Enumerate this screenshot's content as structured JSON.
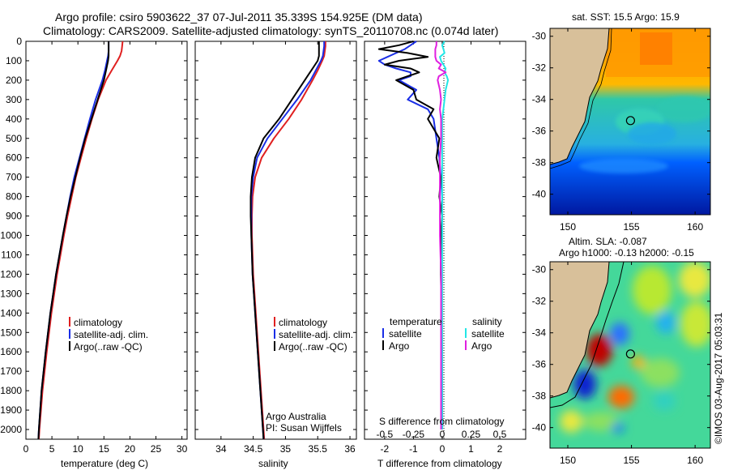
{
  "header": {
    "line1": "Argo profile: csiro 5903622_37 07-Jul-2011 35.339S 154.925E (DM data)",
    "line2": "Climatology: CARS2009. Satellite-adjusted climatology: synTS_20110708.nc (0.074d later)"
  },
  "colors": {
    "climatology": "#e02020",
    "satellite": "#1a2ee6",
    "argo": "#000000",
    "sal_satellite": "#22e6e6",
    "sal_argo": "#e020e0"
  },
  "depth_axis": {
    "ylim": [
      0,
      2050
    ],
    "ticks": [
      "0",
      "100",
      "200",
      "300",
      "400",
      "500",
      "600",
      "700",
      "800",
      "900",
      "1000",
      "1100",
      "1200",
      "1300",
      "1400",
      "1500",
      "1600",
      "1700",
      "1800",
      "1900",
      "2000"
    ]
  },
  "chart_data": [
    {
      "type": "line",
      "xlabel": "temperature (deg C)",
      "xlim": [
        0,
        31
      ],
      "xticks": [
        "0",
        "5",
        "10",
        "15",
        "20",
        "25",
        "30"
      ],
      "legend": [
        "climatology",
        "satellite-adj. clim.",
        "Argo(..raw -QC)"
      ],
      "depth": [
        0,
        25,
        50,
        75,
        100,
        150,
        200,
        300,
        400,
        500,
        600,
        700,
        800,
        900,
        1000,
        1200,
        1400,
        1600,
        1800,
        2000,
        2050
      ],
      "series": [
        {
          "name": "climatology",
          "values": [
            18.6,
            18.5,
            18.4,
            18.1,
            17.6,
            16.5,
            15.4,
            13.9,
            12.7,
            11.6,
            10.6,
            9.6,
            8.8,
            8.0,
            7.3,
            6.0,
            4.9,
            4.0,
            3.2,
            2.6,
            2.5
          ]
        },
        {
          "name": "satellite-adj. clim.",
          "values": [
            15.9,
            15.9,
            15.9,
            15.8,
            15.6,
            15.2,
            14.7,
            13.4,
            12.3,
            11.3,
            10.3,
            9.3,
            8.5,
            7.8,
            7.1,
            5.8,
            4.7,
            3.8,
            3.0,
            2.5,
            2.4
          ]
        },
        {
          "name": "Argo(..raw -QC)",
          "values": [
            15.9,
            15.9,
            15.9,
            15.9,
            15.8,
            15.4,
            15.0,
            13.8,
            12.6,
            11.4,
            10.4,
            9.5,
            8.6,
            7.8,
            7.1,
            5.8,
            4.7,
            3.8,
            3.0,
            2.5,
            2.4
          ]
        }
      ]
    },
    {
      "type": "line",
      "xlabel": "salinity",
      "xlim": [
        33.6,
        36.1
      ],
      "xticks": [
        "34",
        "34.5",
        "35",
        "35.5",
        "36"
      ],
      "legend": [
        "climatology",
        "satellite-adj. clim.",
        "Argo(..raw -QC)"
      ],
      "footnote1": "Argo Australia",
      "footnote2": "PI: Susan Wijffels",
      "depth": [
        0,
        25,
        50,
        75,
        100,
        150,
        200,
        300,
        400,
        500,
        600,
        700,
        800,
        900,
        1000,
        1200,
        1400,
        1600,
        1800,
        2000,
        2050
      ],
      "series": [
        {
          "name": "climatology",
          "values": [
            35.62,
            35.62,
            35.61,
            35.6,
            35.57,
            35.5,
            35.42,
            35.25,
            35.05,
            34.82,
            34.63,
            34.53,
            34.49,
            34.48,
            34.48,
            34.5,
            34.54,
            34.58,
            34.62,
            34.66,
            34.67
          ]
        },
        {
          "name": "satellite-adj. clim.",
          "values": [
            35.6,
            35.6,
            35.59,
            35.58,
            35.55,
            35.47,
            35.39,
            35.18,
            34.95,
            34.72,
            34.56,
            34.5,
            34.47,
            34.47,
            34.47,
            34.49,
            34.53,
            34.57,
            34.61,
            34.65,
            34.66
          ]
        },
        {
          "name": "Argo(..raw -QC)",
          "values": [
            35.52,
            35.52,
            35.52,
            35.52,
            35.5,
            35.4,
            35.3,
            35.1,
            34.9,
            34.66,
            34.53,
            34.48,
            34.46,
            34.46,
            34.47,
            34.49,
            34.53,
            34.57,
            34.61,
            34.65,
            34.66
          ]
        }
      ]
    },
    {
      "type": "line",
      "xlabel": "T difference from climatology",
      "xlabel_top": "S difference from climatology",
      "xlim": [
        -2.7,
        2.9
      ],
      "xticks": [
        "-2",
        "-1",
        "0",
        "1",
        "2"
      ],
      "sticks": [
        "-0.5",
        "-0.25",
        "0",
        "0.25",
        "0.5"
      ],
      "legend_t_title": "temperature",
      "legend_s_title": "salinity",
      "legend_t": [
        "satellite",
        "Argo"
      ],
      "legend_s": [
        "satellite",
        "Argo"
      ],
      "t_depth": [
        0,
        20,
        40,
        60,
        80,
        100,
        120,
        140,
        160,
        180,
        200,
        250,
        300,
        350,
        400,
        500,
        600,
        700,
        800,
        900,
        1000,
        1200,
        1400,
        1600,
        1800,
        2000
      ],
      "t_series": [
        {
          "name": "T satellite",
          "values": [
            -0.9,
            -1.1,
            -1.3,
            -1.6,
            -1.9,
            -2.2,
            -2.0,
            -1.6,
            -1.1,
            -1.1,
            -1.5,
            -0.9,
            -1.2,
            -0.5,
            -0.3,
            -0.2,
            -0.1,
            -0.05,
            0,
            0,
            0,
            -0.02,
            -0.02,
            0,
            0,
            0
          ]
        },
        {
          "name": "T Argo",
          "values": [
            -1.0,
            -1.5,
            -2.2,
            -1.2,
            -0.5,
            -1.5,
            -2.0,
            -1.1,
            -0.8,
            -1.2,
            -1.6,
            -1.0,
            -0.9,
            -0.3,
            -0.5,
            -0.1,
            -0.2,
            -0.05,
            -0.1,
            0,
            -0.05,
            -0.05,
            -0.02,
            -0.02,
            -0.02,
            -0.02
          ]
        }
      ],
      "s_depth": [
        0,
        20,
        40,
        60,
        80,
        100,
        120,
        140,
        160,
        180,
        200,
        250,
        300,
        350,
        400,
        500,
        600,
        700,
        800,
        900,
        1000,
        1200,
        1400,
        1600,
        1800,
        2000
      ],
      "s_series": [
        {
          "name": "S satellite",
          "values": [
            0.02,
            0.0,
            0.01,
            0.02,
            -0.02,
            -0.01,
            0.01,
            0.03,
            0.02,
            0.04,
            0.05,
            0.03,
            0.02,
            0.01,
            0.0,
            0.0,
            0.0,
            0.0,
            0.0,
            0.0,
            0.0,
            0.0,
            0.0,
            0.0,
            0.0,
            0.0
          ]
        },
        {
          "name": "S Argo",
          "values": [
            -0.05,
            -0.05,
            -0.06,
            -0.06,
            -0.06,
            -0.05,
            -0.01,
            -0.03,
            0.03,
            -0.03,
            -0.04,
            -0.02,
            -0.01,
            -0.02,
            -0.01,
            -0.01,
            -0.02,
            -0.02,
            -0.02,
            -0.02,
            -0.02,
            -0.01,
            -0.01,
            -0.01,
            -0.01,
            -0.01
          ]
        }
      ]
    }
  ],
  "maps": {
    "sst_title": "sat. SST: 15.5 Argo: 15.9",
    "sla_title1": "Altim. SLA: -0.087",
    "sla_title2": "Argo h1000: -0.13 h2000: -0.15",
    "lat_ticks": [
      "-30",
      "-32",
      "-34",
      "-36",
      "-38",
      "-40"
    ],
    "lon_ticks": [
      "150",
      "155",
      "160"
    ],
    "float_lon": 154.925,
    "float_lat": -35.339
  },
  "credit": "©IMOS 03-Aug-2017 05:03:31"
}
